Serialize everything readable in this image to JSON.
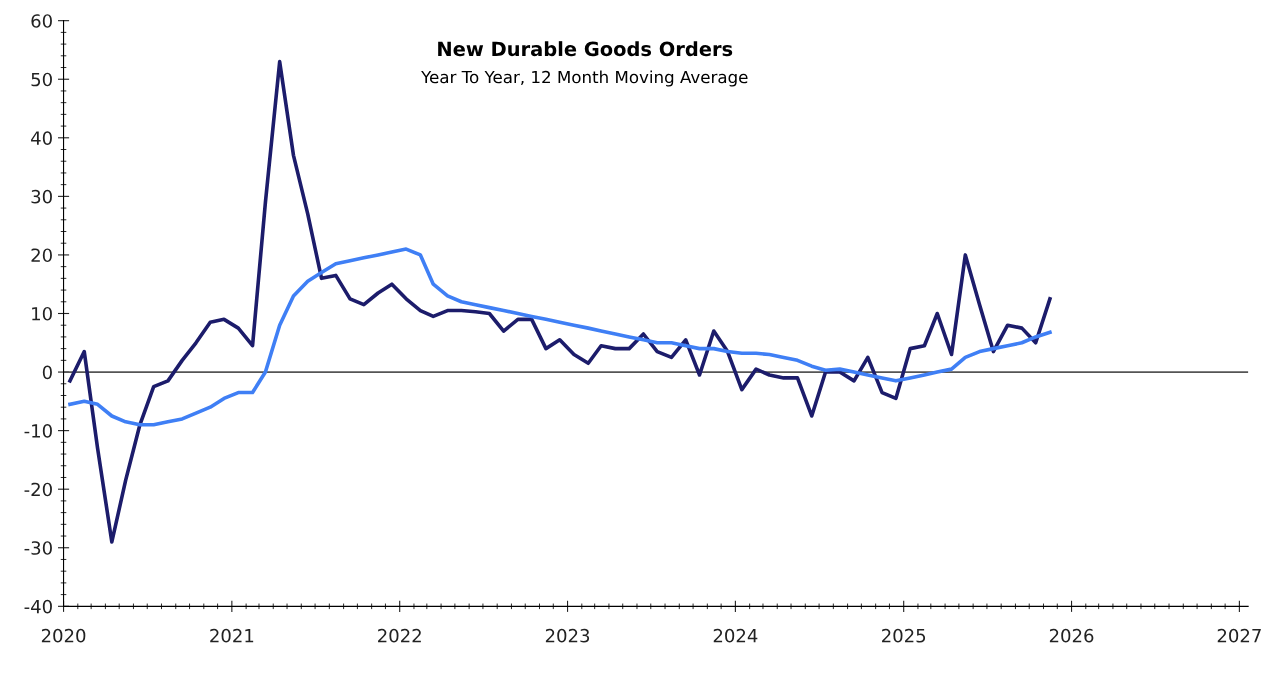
{
  "chart_data": {
    "type": "line",
    "title": "New Durable Goods Orders",
    "subtitle": "Year To Year, 12 Month Moving Average",
    "x": [
      "2020-01-15",
      "2020-02-15",
      "2020-03-15",
      "2020-04-15",
      "2020-05-15",
      "2020-06-15",
      "2020-07-15",
      "2020-08-15",
      "2020-09-15",
      "2020-10-15",
      "2020-11-15",
      "2020-12-15",
      "2021-01-15",
      "2021-02-15",
      "2021-03-15",
      "2021-04-15",
      "2021-05-15",
      "2021-06-15",
      "2021-07-15",
      "2021-08-15",
      "2021-09-15",
      "2021-10-15",
      "2021-11-15",
      "2021-12-15",
      "2022-01-15",
      "2022-02-15",
      "2022-03-15",
      "2022-04-15",
      "2022-05-15",
      "2022-06-15",
      "2022-07-15",
      "2022-08-15",
      "2022-09-15",
      "2022-10-15",
      "2022-11-15",
      "2022-12-15",
      "2023-01-15",
      "2023-02-15",
      "2023-03-15",
      "2023-04-15",
      "2023-05-15",
      "2023-06-15",
      "2023-07-15",
      "2023-08-15",
      "2023-09-15",
      "2023-10-15",
      "2023-11-15",
      "2023-12-15",
      "2024-01-15",
      "2024-02-15",
      "2024-03-15",
      "2024-04-15",
      "2024-05-15",
      "2024-06-15",
      "2024-07-15",
      "2024-08-15",
      "2024-09-15",
      "2024-10-15",
      "2024-11-15",
      "2024-12-15",
      "2025-01-15",
      "2025-02-15",
      "2025-03-15",
      "2025-04-15",
      "2025-05-15",
      "2025-06-15",
      "2025-07-15",
      "2025-08-15",
      "2025-09-15",
      "2025-10-15",
      "2025-11-15"
    ],
    "series": [
      {
        "color": "#1c1c6b",
        "values": [
          -1.5,
          3.5,
          -13,
          -29,
          -18.5,
          -9,
          -2.5,
          -1.5,
          2,
          5,
          8.5,
          9,
          7.5,
          4.5,
          29,
          53,
          37,
          27,
          16,
          16.5,
          12.5,
          11.5,
          13.5,
          15,
          12.5,
          10.5,
          9.5,
          10.5,
          10.5,
          10.3,
          10,
          7,
          9,
          9,
          4,
          5.5,
          3,
          1.5,
          4.5,
          4,
          4,
          6.5,
          3.5,
          2.5,
          5.5,
          -0.5,
          7,
          3.5,
          -3,
          0.5,
          -0.5,
          -1,
          -1,
          -7.5,
          0,
          0,
          -1.5,
          2.5,
          -3.5,
          -4.5,
          4,
          4.5,
          10,
          3,
          20,
          11.5,
          3.5,
          8,
          7.5,
          5,
          12.5
        ]
      },
      {
        "color": "#3f7ff5",
        "values": [
          -5.5,
          -5,
          -5.5,
          -7.5,
          -8.5,
          -9,
          -9,
          -8.5,
          -8,
          -7,
          -6,
          -4.5,
          -3.5,
          -3.5,
          0,
          8,
          13,
          15.5,
          17,
          18.5,
          19,
          19.5,
          20,
          20.5,
          21,
          20,
          15,
          13,
          12,
          11.5,
          11,
          10.5,
          10,
          9.5,
          9,
          8.5,
          8,
          7.5,
          7,
          6.5,
          6,
          5.5,
          5,
          5,
          4.5,
          4,
          4,
          3.5,
          3.2,
          3.2,
          3,
          2.5,
          2,
          1,
          0.3,
          0.5,
          0,
          -0.5,
          -1,
          -1.5,
          -1,
          -0.5,
          0,
          0.5,
          2.5,
          3.5,
          4,
          4.5,
          5,
          6,
          6.8
        ]
      }
    ],
    "xlim": [
      "2020-01-01",
      "2027-01-20"
    ],
    "xticks": [
      "2020",
      "2021",
      "2022",
      "2023",
      "2024",
      "2025",
      "2026",
      "2027"
    ],
    "ylim": [
      -40,
      60
    ],
    "yticks": [
      -40,
      -30,
      -20,
      -10,
      0,
      10,
      20,
      30,
      40,
      50,
      60
    ],
    "ref_lines": [
      {
        "axis": "y",
        "value": 0,
        "color": "#555555"
      }
    ],
    "grid": false,
    "legend": false,
    "marker": "none",
    "line_style": "solid"
  }
}
